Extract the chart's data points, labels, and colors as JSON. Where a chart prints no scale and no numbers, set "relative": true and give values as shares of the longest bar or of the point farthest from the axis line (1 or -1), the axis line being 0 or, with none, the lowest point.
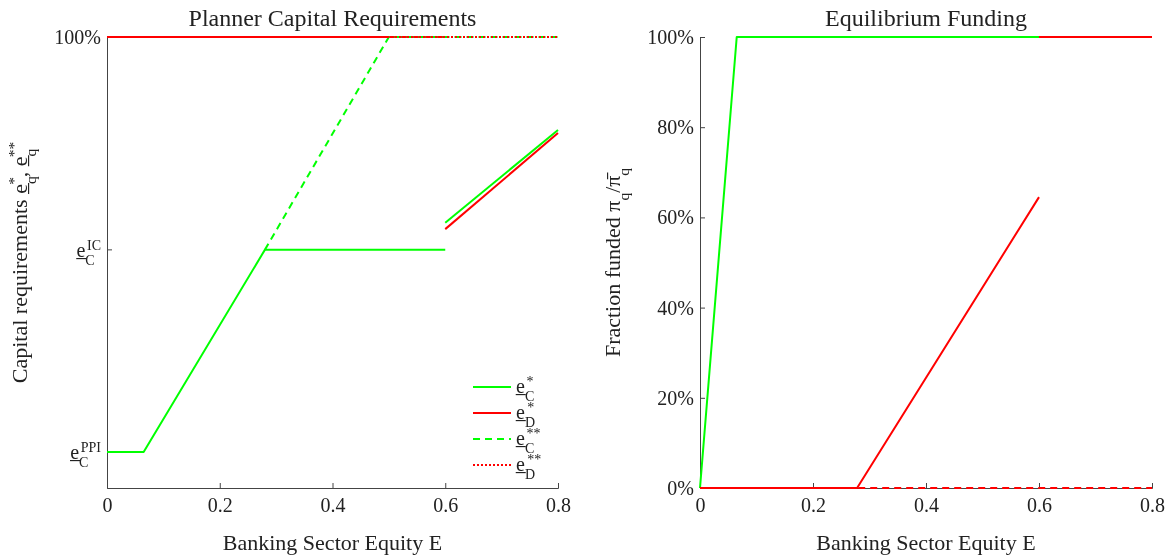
{
  "chart_data": [
    {
      "type": "line",
      "relative": true,
      "title": "Planner Capital Requirements",
      "xlabel": "Banking Sector Equity E",
      "ylabel": "Capital requirements e̲$_{q}$$^{*}$, e̲$_{q}$$^{**}$",
      "xlim": [
        0,
        0.8
      ],
      "xticks": [
        0,
        0.2,
        0.4,
        0.6,
        0.8
      ],
      "annotations": [
        "e̲$_{C}$$^{PPI}$",
        "e̲$_{C}$$^{IC}$",
        "100%"
      ],
      "legend": "bottom right",
      "series": [
        {
          "name": "e̲$_{C}$$^{*}$",
          "color": "#00ff00",
          "line_style": "solid",
          "x": [
            0,
            0.065,
            0.28,
            0.6
          ],
          "values": [
            0.08,
            0.08,
            0.528,
            0.528
          ]
        },
        {
          "name": "e̲$_{D}$$^{*}$",
          "color": "#ff0000",
          "line_style": "solid",
          "x": [
            0,
            0.6
          ],
          "values": [
            1,
            1
          ]
        },
        {
          "name": "e̲$_{C}$$^{**}$",
          "color": "#00ff00",
          "line_style": "dashed",
          "x": [
            0.28,
            0.5,
            0.8
          ],
          "values": [
            0.528,
            1,
            1
          ]
        },
        {
          "name": "e̲$_{D}$$^{**}$",
          "color": "#ff0000",
          "line_style": "dotted",
          "x": [
            0,
            0.8
          ],
          "values": [
            1,
            1
          ]
        },
        {
          "color": "#00ff00",
          "line_style": "solid",
          "x": [
            0.6,
            0.8
          ],
          "values": [
            0.588,
            0.794
          ]
        },
        {
          "color": "#ff0000",
          "line_style": "solid",
          "x": [
            0.6,
            0.8
          ],
          "values": [
            0.574,
            0.787
          ]
        }
      ]
    },
    {
      "type": "line",
      "title": "Equilibrium Funding",
      "xlabel": "Banking Sector Equity E",
      "ylabel": "Fraction funded π$_{q}$/π̄$_{q}$",
      "xlim": [
        0,
        0.8
      ],
      "xticks": [
        0,
        0.2,
        0.4,
        0.6,
        0.8
      ],
      "ylim": [
        0,
        100
      ],
      "yticks": [
        {
          "value": 0,
          "label": "0%"
        },
        {
          "value": 20,
          "label": "20%"
        },
        {
          "value": 40,
          "label": "40%"
        },
        {
          "value": 60,
          "label": "60%"
        },
        {
          "value": 80,
          "label": "80%"
        },
        {
          "value": 100,
          "label": "100%"
        }
      ],
      "series": [
        {
          "color": "#00ff00",
          "line_style": "solid",
          "x": [
            0,
            0.065,
            0.6
          ],
          "values": [
            0,
            100,
            100
          ]
        },
        {
          "color": "#ff0000",
          "line_style": "solid",
          "x": [
            0,
            0.278,
            0.6
          ],
          "values": [
            0,
            0,
            64.5
          ]
        },
        {
          "color": "#ff0000",
          "line_style": "solid",
          "x": [
            0.6,
            0.8
          ],
          "values": [
            100,
            100
          ]
        },
        {
          "color": "#ff0000",
          "line_style": "dashed",
          "x": [
            0.28,
            0.8
          ],
          "values": [
            0,
            0
          ]
        }
      ]
    }
  ]
}
